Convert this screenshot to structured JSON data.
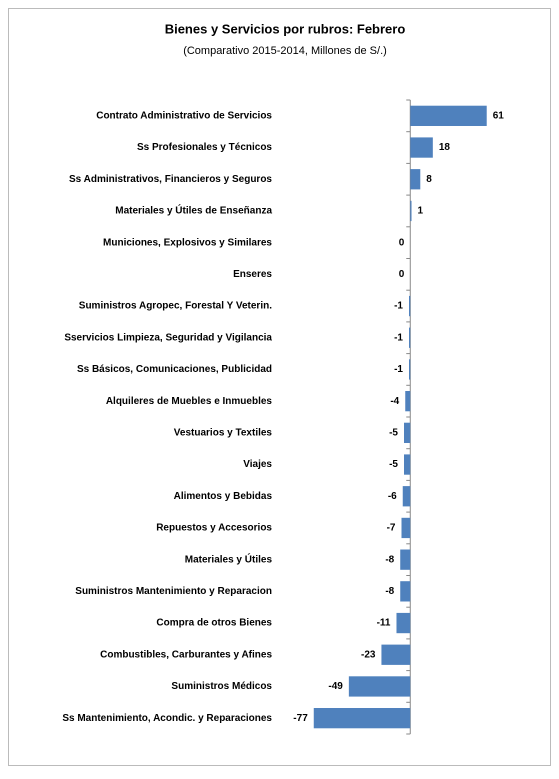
{
  "chart_data": {
    "type": "barh",
    "title": "Bienes y Servicios por rubros: Febrero",
    "subtitle": "(Comparativo 2015-2014, Millones de S/.)",
    "categories": [
      "Contrato Administrativo de Servicios",
      "Ss Profesionales y Técnicos",
      "Ss Administrativos, Financieros y Seguros",
      "Materiales y Útiles de Enseñanza",
      "Municiones,  Explosivos y Similares",
      "Enseres",
      "Suministros Agropec, Forestal Y Veterin.",
      "Sservicios Limpieza, Seguridad y Vigilancia",
      "Ss Básicos, Comunicaciones, Publicidad",
      "Alquileres de Muebles e Inmuebles",
      "Vestuarios y Textiles",
      "Viajes",
      "Alimentos y Bebidas",
      "Repuestos y Accesorios",
      "Materiales y  Útiles",
      "Suministros Mantenimiento y Reparacion",
      "Compra de otros Bienes",
      "Combustibles, Carburantes y Afines",
      "Suministros Médicos",
      "Ss Mantenimiento, Acondic.  y Reparaciones"
    ],
    "values": [
      61,
      18,
      8,
      1,
      0,
      0,
      -1,
      -1,
      -1,
      -4,
      -5,
      -5,
      -6,
      -7,
      -8,
      -8,
      -11,
      -23,
      -49,
      -77
    ],
    "color": "#4f81bd",
    "xlim": [
      -80,
      70
    ]
  }
}
